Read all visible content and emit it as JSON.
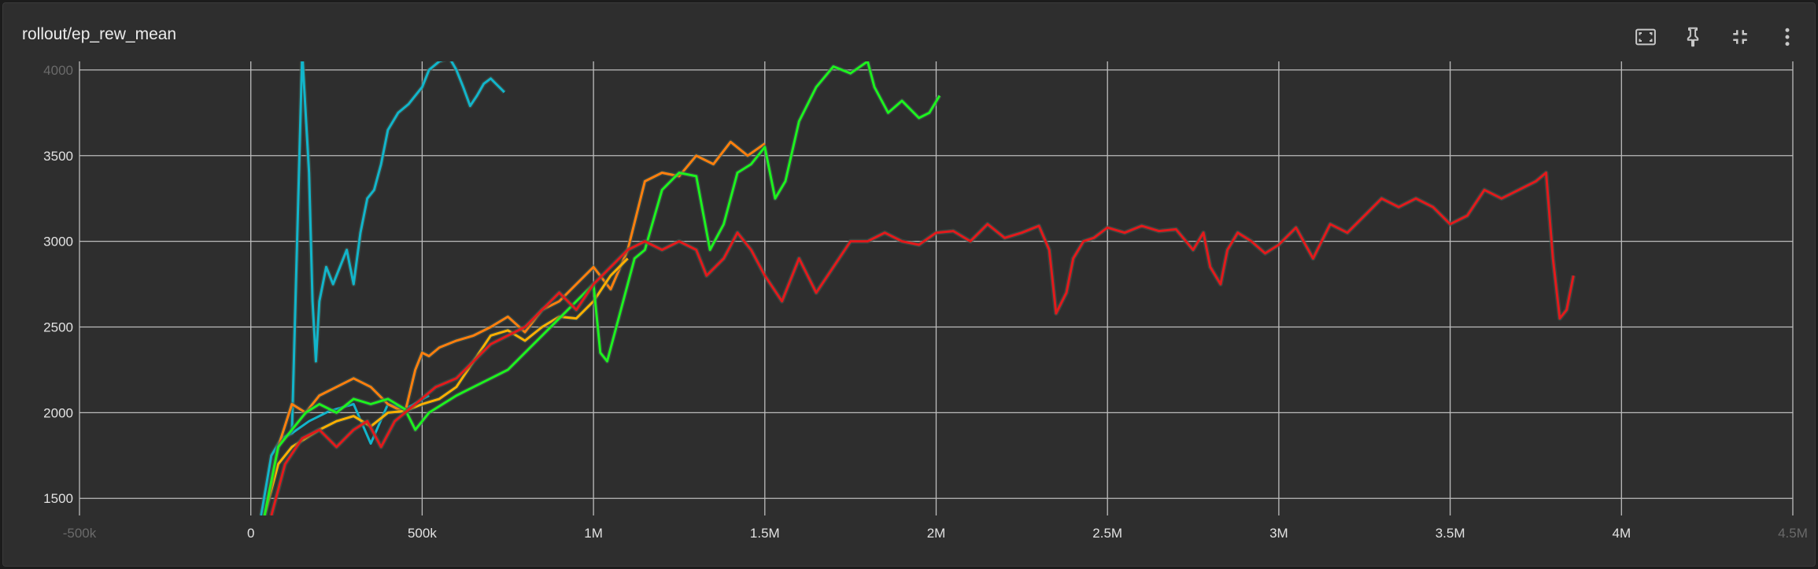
{
  "card": {
    "title": "rollout/ep_rew_mean"
  },
  "toolbar": {
    "icons": [
      "fit-domain-icon",
      "pin-icon",
      "exit-fullscreen-icon",
      "more-vert-icon"
    ]
  },
  "chart_data": {
    "type": "line",
    "title": "rollout/ep_rew_mean",
    "xlabel": "",
    "ylabel": "",
    "xlim": [
      -500000,
      4500000
    ],
    "ylim": [
      1400,
      4050
    ],
    "grid": true,
    "x_ticks": [
      {
        "value": -500000,
        "label": "-500k",
        "faded": true
      },
      {
        "value": 0,
        "label": "0"
      },
      {
        "value": 500000,
        "label": "500k"
      },
      {
        "value": 1000000,
        "label": "1M"
      },
      {
        "value": 1500000,
        "label": "1.5M"
      },
      {
        "value": 2000000,
        "label": "2M"
      },
      {
        "value": 2500000,
        "label": "2.5M"
      },
      {
        "value": 3000000,
        "label": "3M"
      },
      {
        "value": 3500000,
        "label": "3.5M"
      },
      {
        "value": 4000000,
        "label": "4M"
      },
      {
        "value": 4500000,
        "label": "4.5M",
        "faded": true
      }
    ],
    "y_ticks": [
      {
        "value": 1500,
        "label": "1500"
      },
      {
        "value": 2000,
        "label": "2000"
      },
      {
        "value": 2500,
        "label": "2500"
      },
      {
        "value": 3000,
        "label": "3000"
      },
      {
        "value": 3500,
        "label": "3500"
      },
      {
        "value": 4000,
        "label": "4000",
        "faded": true
      }
    ],
    "series": [
      {
        "color": "#12b5cb",
        "x": [
          30000,
          60000,
          90000,
          120000,
          150000,
          170000,
          180000,
          190000,
          200000,
          220000,
          240000,
          260000,
          280000,
          300000,
          320000,
          340000,
          360000,
          380000,
          400000,
          430000,
          460000,
          500000,
          520000,
          550000,
          580000,
          600000,
          620000,
          640000,
          660000,
          680000,
          700000,
          720000,
          740000
        ],
        "y": [
          1400,
          1750,
          1850,
          1880,
          4100,
          3400,
          2650,
          2300,
          2650,
          2850,
          2750,
          2850,
          2950,
          2750,
          3050,
          3250,
          3300,
          3450,
          3650,
          3750,
          3800,
          3900,
          4000,
          4050,
          4070,
          4000,
          3900,
          3790,
          3850,
          3920,
          3950,
          3910,
          3870
        ],
        "prefix_x": [
          120000,
          170000,
          230000,
          300000,
          350000,
          400000,
          450000,
          520000
        ],
        "prefix_y": [
          1880,
          1950,
          2010,
          2050,
          1820,
          2050,
          2020,
          2100
        ]
      },
      {
        "color": "#ff7f0e",
        "x": [
          40000,
          80000,
          120000,
          160000,
          200000,
          250000,
          300000,
          350000,
          400000,
          450000,
          480000,
          500000,
          520000,
          550000,
          600000,
          650000,
          700000,
          750000,
          800000,
          850000,
          900000,
          950000,
          1000000,
          1050000,
          1100000,
          1150000,
          1200000,
          1250000,
          1300000,
          1350000,
          1400000,
          1450000,
          1500000
        ],
        "y": [
          1400,
          1800,
          2050,
          2000,
          2100,
          2150,
          2200,
          2150,
          2050,
          2000,
          2250,
          2350,
          2330,
          2380,
          2420,
          2450,
          2500,
          2560,
          2470,
          2600,
          2650,
          2750,
          2850,
          2720,
          2950,
          3350,
          3400,
          3380,
          3500,
          3450,
          3580,
          3500,
          3570
        ]
      },
      {
        "color": "#ffb000",
        "x": [
          40000,
          80000,
          120000,
          160000,
          200000,
          250000,
          300000,
          350000,
          400000,
          450000,
          500000,
          550000,
          600000,
          650000,
          700000,
          750000,
          800000,
          850000,
          900000,
          950000,
          1000000,
          1050000,
          1100000
        ],
        "y": [
          1400,
          1700,
          1800,
          1850,
          1900,
          1950,
          1980,
          1920,
          2000,
          2010,
          2050,
          2080,
          2150,
          2300,
          2450,
          2480,
          2420,
          2500,
          2560,
          2550,
          2650,
          2800,
          2900
        ]
      },
      {
        "color": "#1ef21e",
        "x": [
          40000,
          80000,
          120000,
          160000,
          200000,
          250000,
          300000,
          350000,
          400000,
          450000,
          480000,
          520000,
          560000,
          600000,
          650000,
          700000,
          750000,
          800000,
          850000,
          900000,
          950000,
          1000000,
          1020000,
          1040000,
          1080000,
          1120000,
          1150000,
          1200000,
          1250000,
          1300000,
          1340000,
          1380000,
          1420000,
          1460000,
          1500000,
          1530000,
          1560000,
          1600000,
          1650000,
          1700000,
          1750000,
          1800000,
          1820000,
          1860000,
          1900000,
          1950000,
          1980000,
          2010000
        ],
        "y": [
          1400,
          1800,
          1900,
          2000,
          2050,
          2000,
          2080,
          2050,
          2080,
          2020,
          1900,
          2000,
          2050,
          2100,
          2150,
          2200,
          2250,
          2350,
          2450,
          2550,
          2650,
          2750,
          2350,
          2300,
          2600,
          2900,
          2950,
          3300,
          3400,
          3380,
          2950,
          3100,
          3400,
          3450,
          3550,
          3250,
          3350,
          3700,
          3900,
          4020,
          3980,
          4050,
          3900,
          3750,
          3820,
          3720,
          3750,
          3850
        ]
      },
      {
        "color": "#e31a1c",
        "x": [
          60000,
          100000,
          150000,
          200000,
          250000,
          300000,
          340000,
          380000,
          420000,
          480000,
          540000,
          600000,
          650000,
          700000,
          750000,
          800000,
          850000,
          900000,
          950000,
          1000000,
          1050000,
          1100000,
          1150000,
          1200000,
          1250000,
          1300000,
          1330000,
          1380000,
          1420000,
          1460000,
          1500000,
          1550000,
          1600000,
          1650000,
          1700000,
          1750000,
          1800000,
          1850000,
          1900000,
          1950000,
          2000000,
          2050000,
          2100000,
          2150000,
          2200000,
          2250000,
          2300000,
          2330000,
          2350000,
          2380000,
          2400000,
          2430000,
          2460000,
          2500000,
          2550000,
          2600000,
          2650000,
          2700000,
          2750000,
          2780000,
          2800000,
          2830000,
          2850000,
          2880000,
          2920000,
          2960000,
          3000000,
          3050000,
          3100000,
          3150000,
          3200000,
          3250000,
          3300000,
          3350000,
          3400000,
          3450000,
          3500000,
          3550000,
          3600000,
          3650000,
          3700000,
          3750000,
          3780000,
          3800000,
          3820000,
          3840000,
          3860000
        ],
        "y": [
          1400,
          1700,
          1850,
          1900,
          1800,
          1900,
          1950,
          1800,
          1950,
          2050,
          2150,
          2200,
          2300,
          2400,
          2450,
          2500,
          2600,
          2700,
          2600,
          2750,
          2850,
          2950,
          3000,
          2950,
          3000,
          2950,
          2800,
          2900,
          3050,
          2950,
          2800,
          2650,
          2900,
          2700,
          2850,
          3000,
          3000,
          3050,
          3000,
          2980,
          3050,
          3060,
          3000,
          3100,
          3020,
          3050,
          3090,
          2950,
          2580,
          2700,
          2900,
          3000,
          3020,
          3080,
          3050,
          3090,
          3060,
          3070,
          2950,
          3050,
          2850,
          2750,
          2950,
          3050,
          3000,
          2930,
          2980,
          3080,
          2900,
          3100,
          3050,
          3150,
          3250,
          3200,
          3250,
          3200,
          3100,
          3150,
          3300,
          3250,
          3300,
          3350,
          3400,
          2900,
          2550,
          2600,
          2800
        ]
      }
    ]
  }
}
